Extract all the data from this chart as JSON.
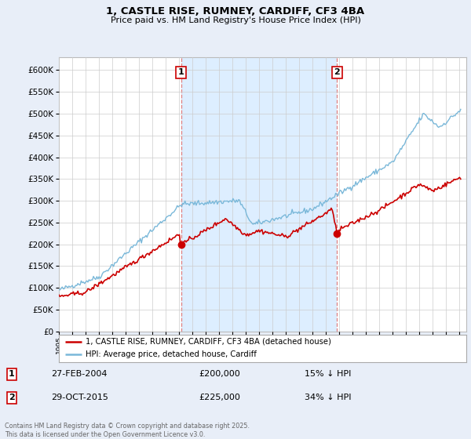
{
  "title_line1": "1, CASTLE RISE, RUMNEY, CARDIFF, CF3 4BA",
  "title_line2": "Price paid vs. HM Land Registry's House Price Index (HPI)",
  "ylim": [
    0,
    630000
  ],
  "yticks": [
    0,
    50000,
    100000,
    150000,
    200000,
    250000,
    300000,
    350000,
    400000,
    450000,
    500000,
    550000,
    600000
  ],
  "hpi_color": "#7ab8d9",
  "property_color": "#cc0000",
  "shade_color": "#ddeeff",
  "legend_label_property": "1, CASTLE RISE, RUMNEY, CARDIFF, CF3 4BA (detached house)",
  "legend_label_hpi": "HPI: Average price, detached house, Cardiff",
  "sale1_date": "27-FEB-2004",
  "sale1_price": "£200,000",
  "sale1_hpi": "15% ↓ HPI",
  "sale1_year": 2004.15,
  "sale1_value": 200000,
  "sale2_date": "29-OCT-2015",
  "sale2_price": "£225,000",
  "sale2_hpi": "34% ↓ HPI",
  "sale2_year": 2015.83,
  "sale2_value": 225000,
  "footer_text": "Contains HM Land Registry data © Crown copyright and database right 2025.\nThis data is licensed under the Open Government Licence v3.0.",
  "background_color": "#e8eef8",
  "plot_bg_color": "#ffffff",
  "vline_color": "#e08080",
  "grid_color": "#cccccc"
}
